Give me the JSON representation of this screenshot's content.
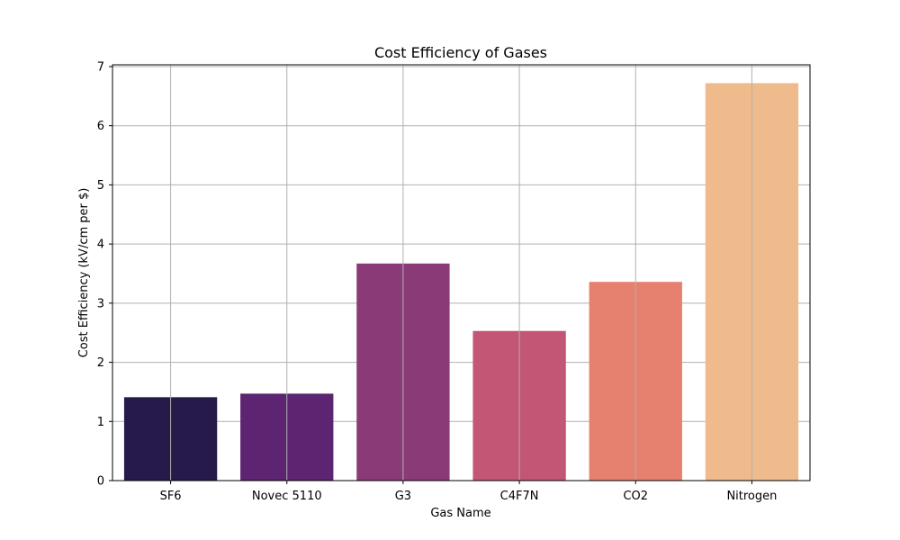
{
  "chart_data": {
    "type": "bar",
    "title": "Cost Efficiency of Gases",
    "xlabel": "Gas Name",
    "ylabel": "Cost Efficiency (kV/cm per $)",
    "categories": [
      "SF6",
      "Novec 5110",
      "G3",
      "C4F7N",
      "CO2",
      "Nitrogen"
    ],
    "values": [
      1.41,
      1.47,
      3.67,
      2.53,
      3.36,
      6.72
    ],
    "colors": [
      "#261a4a",
      "#5c2471",
      "#8b3a78",
      "#c25674",
      "#e5816e",
      "#efbb8d"
    ],
    "ylim": [
      0,
      7.03
    ],
    "yticks": [
      0,
      1,
      2,
      3,
      4,
      5,
      6,
      7
    ],
    "grid": true
  }
}
